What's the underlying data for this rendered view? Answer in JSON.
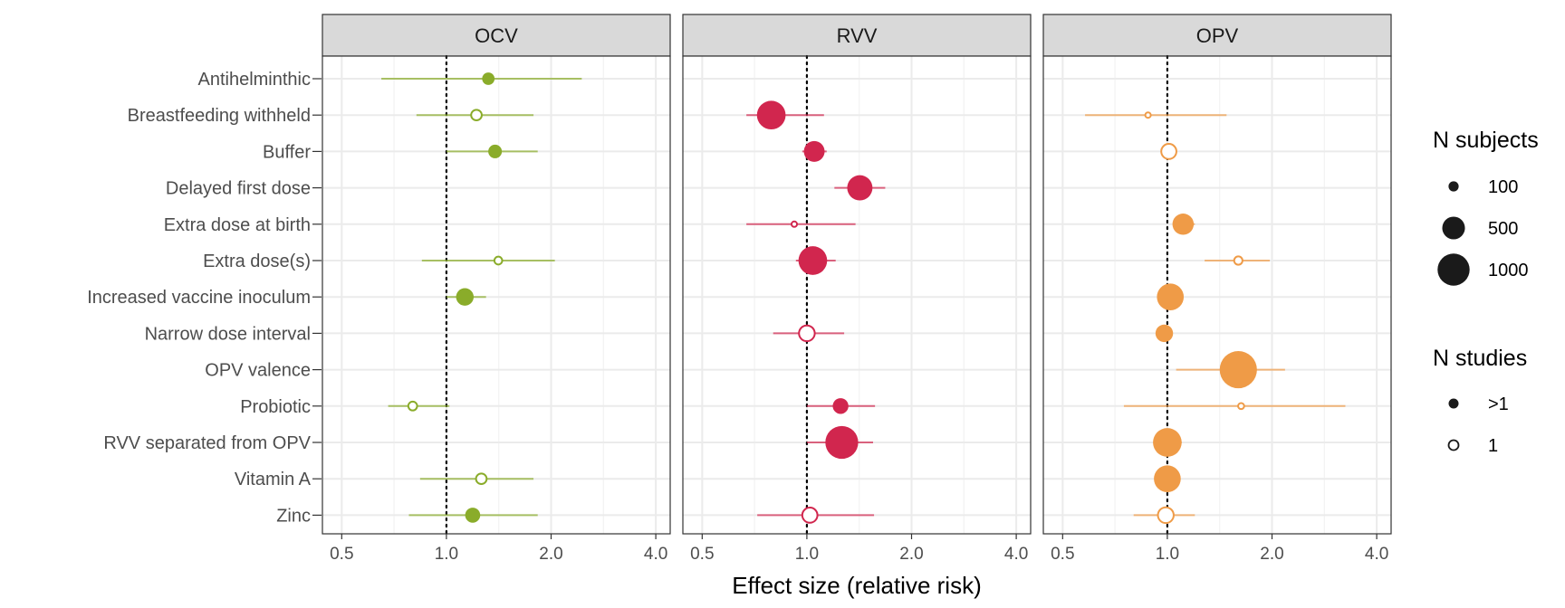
{
  "chart_data": {
    "type": "scatter",
    "xlabel": "Effect size (relative risk)",
    "x_scale": "log2",
    "xlim": [
      0.44,
      4.4
    ],
    "x_ticks": [
      0.5,
      1.0,
      2.0,
      4.0
    ],
    "x_tick_labels": [
      "0.5",
      "1.0",
      "2.0",
      "4.0"
    ],
    "reference_line_x": 1.0,
    "grid": true,
    "categories": [
      "Antihelminthic",
      "Breastfeeding withheld",
      "Buffer",
      "Delayed first dose",
      "Extra dose at birth",
      "Extra dose(s)",
      "Increased vaccine inoculum",
      "Narrow dose interval",
      "OPV valence",
      "Probiotic",
      "RVV separated from OPV",
      "Vitamin A",
      "Zinc"
    ],
    "panels": [
      {
        "name": "OCV",
        "color": "#8aac2a",
        "points": [
          {
            "category": "Antihelminthic",
            "estimate": 1.32,
            "lower": 0.65,
            "upper": 2.45,
            "n_subjects": 150,
            "multi_study": true
          },
          {
            "category": "Breastfeeding withheld",
            "estimate": 1.22,
            "lower": 0.82,
            "upper": 1.78,
            "n_subjects": 150,
            "multi_study": false
          },
          {
            "category": "Buffer",
            "estimate": 1.38,
            "lower": 1.0,
            "upper": 1.83,
            "n_subjects": 180,
            "multi_study": true
          },
          {
            "category": "Extra dose(s)",
            "estimate": 1.41,
            "lower": 0.85,
            "upper": 2.05,
            "n_subjects": 90,
            "multi_study": false
          },
          {
            "category": "Increased vaccine inoculum",
            "estimate": 1.13,
            "lower": 1.0,
            "upper": 1.3,
            "n_subjects": 300,
            "multi_study": true
          },
          {
            "category": "Probiotic",
            "estimate": 0.8,
            "lower": 0.68,
            "upper": 1.02,
            "n_subjects": 110,
            "multi_study": false
          },
          {
            "category": "Vitamin A",
            "estimate": 1.26,
            "lower": 0.84,
            "upper": 1.78,
            "n_subjects": 150,
            "multi_study": false
          },
          {
            "category": "Zinc",
            "estimate": 1.19,
            "lower": 0.78,
            "upper": 1.83,
            "n_subjects": 220,
            "multi_study": true
          }
        ]
      },
      {
        "name": "RVV",
        "color": "#d1264e",
        "points": [
          {
            "category": "Breastfeeding withheld",
            "estimate": 0.79,
            "lower": 0.67,
            "upper": 1.12,
            "n_subjects": 800,
            "multi_study": true
          },
          {
            "category": "Buffer",
            "estimate": 1.05,
            "lower": 0.97,
            "upper": 1.14,
            "n_subjects": 420,
            "multi_study": true
          },
          {
            "category": "Delayed first dose",
            "estimate": 1.42,
            "lower": 1.2,
            "upper": 1.68,
            "n_subjects": 620,
            "multi_study": true
          },
          {
            "category": "Extra dose at birth",
            "estimate": 0.92,
            "lower": 0.67,
            "upper": 1.38,
            "n_subjects": 40,
            "multi_study": false
          },
          {
            "category": "Extra dose(s)",
            "estimate": 1.04,
            "lower": 0.93,
            "upper": 1.21,
            "n_subjects": 800,
            "multi_study": true
          },
          {
            "category": "Narrow dose interval",
            "estimate": 1.0,
            "lower": 0.8,
            "upper": 1.28,
            "n_subjects": 300,
            "multi_study": false
          },
          {
            "category": "Probiotic",
            "estimate": 1.25,
            "lower": 1.0,
            "upper": 1.57,
            "n_subjects": 240,
            "multi_study": true
          },
          {
            "category": "RVV separated from OPV",
            "estimate": 1.26,
            "lower": 1.0,
            "upper": 1.55,
            "n_subjects": 1050,
            "multi_study": true
          },
          {
            "category": "Zinc",
            "estimate": 1.02,
            "lower": 0.72,
            "upper": 1.56,
            "n_subjects": 280,
            "multi_study": false
          }
        ]
      },
      {
        "name": "OPV",
        "color": "#ef9b47",
        "points": [
          {
            "category": "Breastfeeding withheld",
            "estimate": 0.88,
            "lower": 0.58,
            "upper": 1.48,
            "n_subjects": 20,
            "multi_study": false
          },
          {
            "category": "Buffer",
            "estimate": 1.01,
            "lower": 0.97,
            "upper": 1.06,
            "n_subjects": 280,
            "multi_study": false
          },
          {
            "category": "Extra dose at birth",
            "estimate": 1.11,
            "lower": 1.04,
            "upper": 1.2,
            "n_subjects": 440,
            "multi_study": true
          },
          {
            "category": "Extra dose(s)",
            "estimate": 1.6,
            "lower": 1.28,
            "upper": 1.97,
            "n_subjects": 100,
            "multi_study": false
          },
          {
            "category": "Increased vaccine inoculum",
            "estimate": 1.02,
            "lower": 0.96,
            "upper": 1.09,
            "n_subjects": 700,
            "multi_study": true
          },
          {
            "category": "Narrow dose interval",
            "estimate": 0.98,
            "lower": 0.94,
            "upper": 1.03,
            "n_subjects": 300,
            "multi_study": true
          },
          {
            "category": "OPV valence",
            "estimate": 1.6,
            "lower": 1.06,
            "upper": 2.18,
            "n_subjects": 1350,
            "multi_study": true
          },
          {
            "category": "Probiotic",
            "estimate": 1.63,
            "lower": 0.75,
            "upper": 3.25,
            "n_subjects": 60,
            "multi_study": false
          },
          {
            "category": "RVV separated from OPV",
            "estimate": 1.0,
            "lower": 0.92,
            "upper": 1.1,
            "n_subjects": 800,
            "multi_study": true
          },
          {
            "category": "Vitamin A",
            "estimate": 1.0,
            "lower": 0.93,
            "upper": 1.08,
            "n_subjects": 700,
            "multi_study": true
          },
          {
            "category": "Zinc",
            "estimate": 0.99,
            "lower": 0.8,
            "upper": 1.2,
            "n_subjects": 300,
            "multi_study": false
          }
        ]
      }
    ],
    "legend": {
      "placement": "right",
      "size_title": "N subjects",
      "size_entries": [
        {
          "label": "100",
          "value": 100
        },
        {
          "label": "500",
          "value": 500
        },
        {
          "label": "1000",
          "value": 1000
        }
      ],
      "shape_title": "N studies",
      "shape_entries": [
        {
          "label": ">1",
          "filled": true
        },
        {
          "label": "1",
          "filled": false
        }
      ]
    }
  }
}
